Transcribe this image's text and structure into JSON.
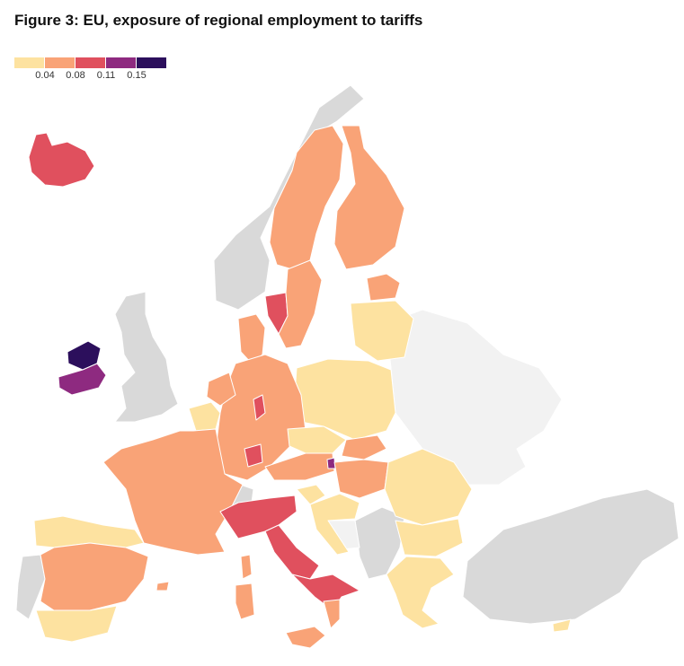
{
  "title": "Figure 3: EU, exposure of regional employment to tariffs",
  "legend": {
    "colors": [
      "#fde2a0",
      "#f9a377",
      "#e0505e",
      "#8e2a80",
      "#2c0f5c"
    ],
    "ticks": [
      "0.04",
      "0.08",
      "0.11",
      "0.15"
    ]
  },
  "map_colors": {
    "no_data": "#d9d9d9",
    "non_eu": "#f2f2f2"
  }
}
